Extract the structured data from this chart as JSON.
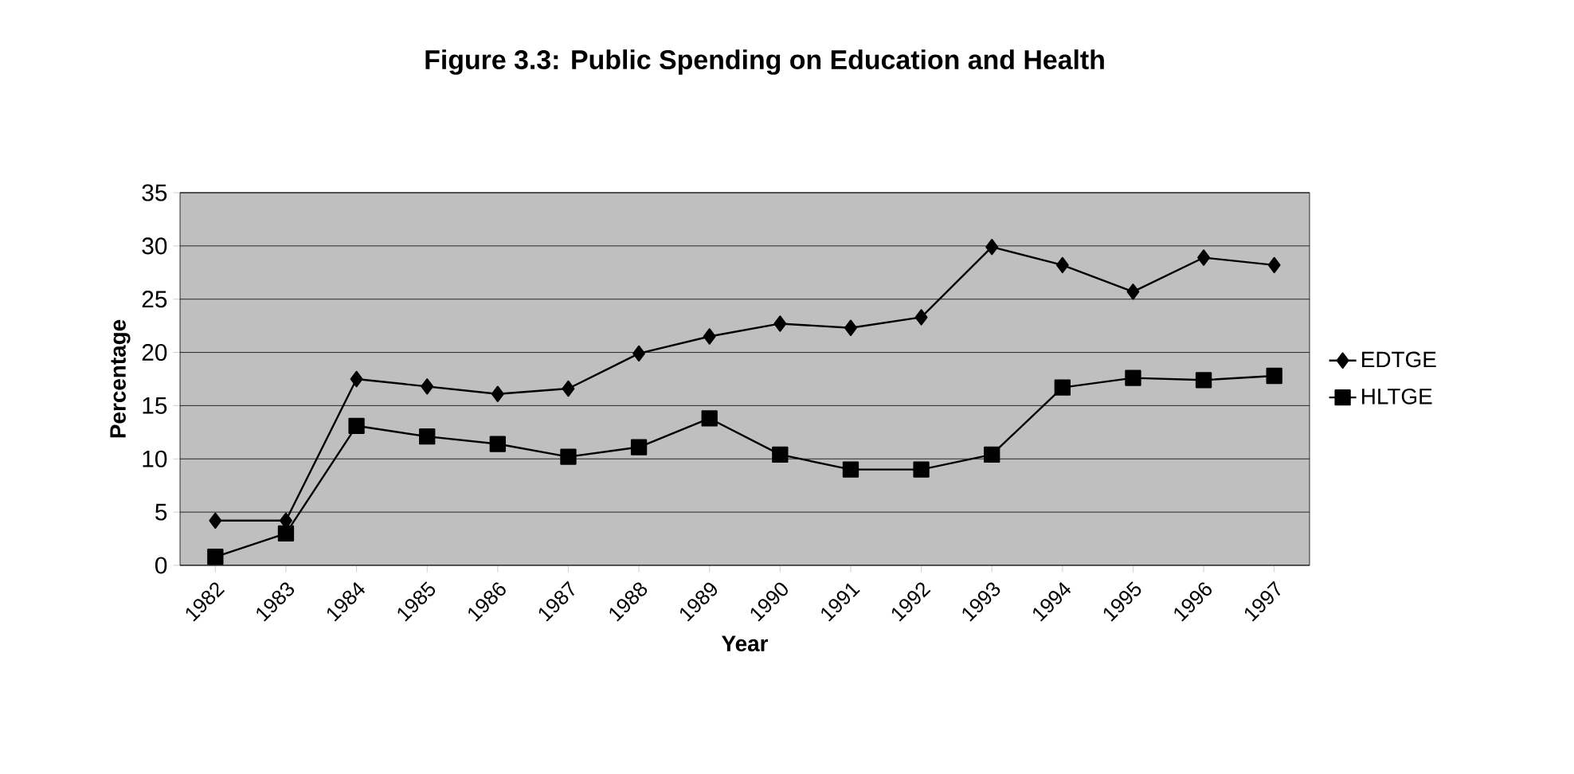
{
  "chart_data": {
    "type": "line",
    "title": "Figure 3.3: Public Spending on Education and Health",
    "xlabel": "Year",
    "ylabel": "Percentage",
    "categories": [
      "1982",
      "1983",
      "1984",
      "1985",
      "1986",
      "1987",
      "1988",
      "1989",
      "1990",
      "1991",
      "1992",
      "1993",
      "1994",
      "1995",
      "1996",
      "1997"
    ],
    "series": [
      {
        "name": "EDTGE",
        "color": "#000000",
        "marker": "diamond",
        "values": [
          4.2,
          4.2,
          17.5,
          16.8,
          16.1,
          16.6,
          19.9,
          21.5,
          22.7,
          22.3,
          23.3,
          29.9,
          28.2,
          25.7,
          28.9,
          28.2
        ]
      },
      {
        "name": "HLTGE",
        "color": "#000000",
        "marker": "square",
        "values": [
          0.8,
          3.0,
          13.1,
          12.1,
          11.4,
          10.2,
          11.1,
          13.8,
          10.4,
          9.0,
          9.0,
          10.4,
          16.7,
          17.6,
          17.4,
          17.8
        ]
      }
    ],
    "ylim": [
      0,
      35
    ],
    "yticks": [
      0,
      5,
      10,
      15,
      20,
      25,
      30,
      35
    ],
    "grid": "y",
    "legend": "right",
    "line_style": "solid"
  }
}
